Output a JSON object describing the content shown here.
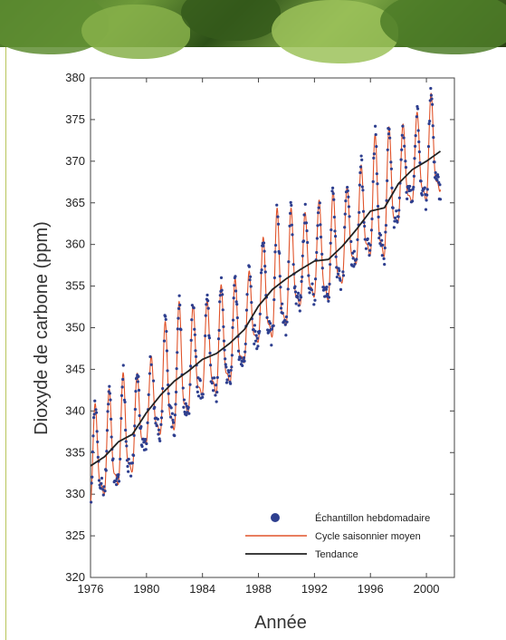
{
  "colors": {
    "samples": "#2e3f8f",
    "seasonal": "#e0532a",
    "trend": "#222222"
  },
  "chart_data": {
    "type": "line",
    "title": "",
    "xlabel": "Année",
    "ylabel": "Dioxyde de carbone (ppm)",
    "xlim": [
      1976,
      2002
    ],
    "ylim": [
      320,
      380
    ],
    "xticks": [
      1976,
      1980,
      1984,
      1988,
      1992,
      1996,
      2000
    ],
    "yticks": [
      320,
      325,
      330,
      335,
      340,
      345,
      350,
      355,
      360,
      365,
      370,
      375,
      380
    ],
    "grid": false,
    "legend_position": "bottom-right",
    "series": [
      {
        "name": "Échantillon hebdomadaire",
        "kind": "scatter",
        "note": "weekly samples following the seasonal cycle around the trend",
        "x_range": [
          1976,
          2001
        ],
        "y_range": [
          323.5,
          378
        ]
      },
      {
        "name": "Cycle saisonnier moyen",
        "kind": "line",
        "x_range": [
          1976,
          2001
        ],
        "y_range": [
          324,
          376
        ]
      },
      {
        "name": "Tendance",
        "kind": "line",
        "x": [
          1976,
          1977,
          1978,
          1979,
          1980,
          1981,
          1982,
          1983,
          1984,
          1985,
          1986,
          1987,
          1988,
          1989,
          1990,
          1991,
          1992,
          1993,
          1994,
          1995,
          1996,
          1997,
          1998,
          1999,
          2000,
          2001
        ],
        "y": [
          333.4,
          334.5,
          336.3,
          337.2,
          339.8,
          341.9,
          343.6,
          344.8,
          346.2,
          346.9,
          348.2,
          349.8,
          352.6,
          354.6,
          355.9,
          357.0,
          358.0,
          358.2,
          359.8,
          361.8,
          364.0,
          364.4,
          367.3,
          369.0,
          370.0,
          371.2
        ]
      }
    ]
  }
}
